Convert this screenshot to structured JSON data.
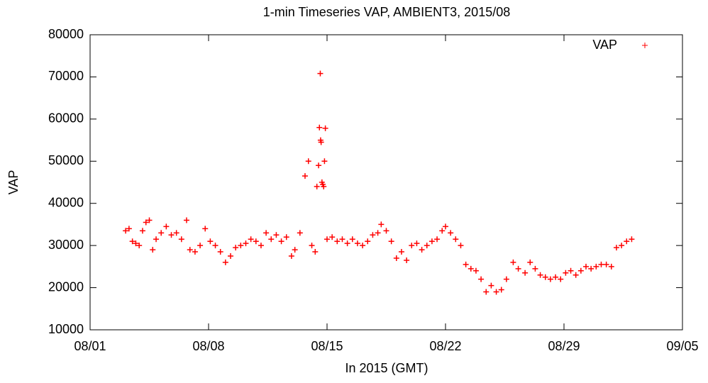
{
  "chart_data": {
    "type": "scatter",
    "title": "1-min Timeseries VAP, AMBIENT3, 2015/08",
    "x_label": "In 2015 (GMT)",
    "y_label": "VAP",
    "xlim": [
      1,
      36
    ],
    "ylim": [
      10000,
      80000
    ],
    "xticks": [
      {
        "value": 1,
        "label": "08/01"
      },
      {
        "value": 8,
        "label": "08/08"
      },
      {
        "value": 15,
        "label": "08/15"
      },
      {
        "value": 22,
        "label": "08/22"
      },
      {
        "value": 29,
        "label": "08/29"
      },
      {
        "value": 36,
        "label": "09/05"
      }
    ],
    "yticks": [
      10000,
      20000,
      30000,
      40000,
      50000,
      60000,
      70000,
      80000
    ],
    "legend": "top-right",
    "grid": false,
    "x": [
      3.1,
      3.3,
      3.5,
      3.7,
      3.9,
      4.1,
      4.3,
      4.5,
      4.7,
      4.9,
      5.2,
      5.5,
      5.8,
      6.1,
      6.4,
      6.7,
      6.9,
      7.2,
      7.5,
      7.8,
      8.1,
      8.4,
      8.7,
      9.0,
      9.3,
      9.6,
      9.9,
      10.2,
      10.5,
      10.8,
      11.1,
      11.4,
      11.7,
      12.0,
      12.3,
      12.6,
      12.9,
      13.1,
      13.4,
      13.7,
      13.9,
      14.1,
      14.3,
      14.4,
      14.5,
      14.55,
      14.6,
      14.62,
      14.65,
      14.7,
      14.75,
      14.8,
      14.85,
      14.9,
      15.0,
      15.3,
      15.6,
      15.9,
      16.2,
      16.5,
      16.8,
      17.1,
      17.4,
      17.7,
      18.0,
      18.2,
      18.5,
      18.8,
      19.1,
      19.4,
      19.7,
      20.0,
      20.3,
      20.6,
      20.9,
      21.2,
      21.5,
      21.8,
      22.0,
      22.3,
      22.6,
      22.9,
      23.2,
      23.5,
      23.8,
      24.1,
      24.4,
      24.7,
      25.0,
      25.3,
      25.6,
      26.0,
      26.3,
      26.7,
      27.0,
      27.3,
      27.6,
      27.9,
      28.2,
      28.5,
      28.8,
      29.1,
      29.4,
      29.7,
      30.0,
      30.3,
      30.6,
      30.9,
      31.2,
      31.5,
      31.8,
      32.1,
      32.4,
      32.7,
      33.0
    ],
    "series": [
      {
        "name": "VAP",
        "color": "#ff0000",
        "values": [
          33500,
          34000,
          31000,
          30500,
          30000,
          33500,
          35500,
          36000,
          29000,
          31500,
          33000,
          34500,
          32500,
          33000,
          31500,
          36000,
          29000,
          28500,
          30000,
          34000,
          31000,
          30000,
          28500,
          26000,
          27500,
          29500,
          30000,
          30500,
          31500,
          31000,
          30000,
          33000,
          31500,
          32500,
          31000,
          32000,
          27500,
          29000,
          33000,
          46500,
          50000,
          30000,
          28500,
          44000,
          49000,
          58000,
          70800,
          55000,
          54500,
          45000,
          44500,
          44000,
          50000,
          57800,
          31500,
          32000,
          31000,
          31500,
          30500,
          31500,
          30500,
          30000,
          31000,
          32500,
          33000,
          35000,
          33500,
          31000,
          27000,
          28500,
          26500,
          30000,
          30500,
          29000,
          30000,
          31000,
          31500,
          33500,
          34500,
          33000,
          31500,
          30000,
          25500,
          24500,
          24000,
          22000,
          19000,
          20500,
          19000,
          19500,
          22000,
          26000,
          24500,
          23500,
          26000,
          24500,
          23000,
          22500,
          22000,
          22500,
          22000,
          23500,
          24000,
          23000,
          24000,
          25000,
          24500,
          25000,
          25500,
          25500,
          25000,
          29500,
          30000,
          31000,
          31500
        ]
      }
    ]
  }
}
